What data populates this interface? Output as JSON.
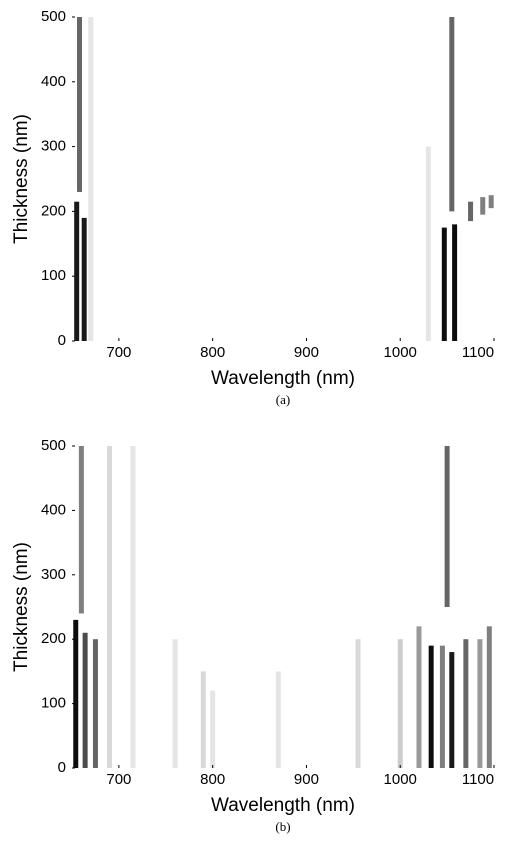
{
  "chart_data": [
    {
      "type": "heatmap",
      "xlabel": "Wavelength (nm)",
      "ylabel": "Thickness (nm)",
      "caption": "(a)",
      "xlim": [
        650,
        1100
      ],
      "ylim": [
        0,
        500
      ],
      "xticks": [
        700,
        800,
        900,
        1000,
        1100
      ],
      "yticks": [
        0,
        100,
        200,
        300,
        400,
        500
      ],
      "x": [
        655,
        658,
        663,
        670,
        1030,
        1047,
        1055,
        1058,
        1075,
        1088,
        1097
      ],
      "y": [
        [
          0,
          215
        ],
        [
          230,
          500
        ],
        [
          0,
          190
        ],
        [
          0,
          500
        ],
        [
          0,
          300
        ],
        [
          0,
          175
        ],
        [
          200,
          500
        ],
        [
          0,
          180
        ],
        [
          185,
          215
        ],
        [
          195,
          222
        ],
        [
          205,
          225
        ]
      ],
      "values": [
        0.9,
        0.6,
        0.9,
        0.1,
        0.1,
        0.95,
        0.6,
        0.95,
        0.6,
        0.5,
        0.5
      ]
    },
    {
      "type": "heatmap",
      "xlabel": "Wavelength (nm)",
      "ylabel": "Thickness (nm)",
      "caption": "(b)",
      "xlim": [
        650,
        1100
      ],
      "ylim": [
        0,
        500
      ],
      "xticks": [
        700,
        800,
        900,
        1000,
        1100
      ],
      "yticks": [
        0,
        100,
        200,
        300,
        400,
        500
      ],
      "x": [
        654,
        660,
        664,
        675,
        690,
        715,
        760,
        790,
        800,
        870,
        955,
        1000,
        1020,
        1033,
        1045,
        1050,
        1055,
        1070,
        1085,
        1095
      ],
      "y": [
        [
          0,
          230
        ],
        [
          240,
          500
        ],
        [
          0,
          210
        ],
        [
          0,
          200
        ],
        [
          0,
          500
        ],
        [
          0,
          500
        ],
        [
          0,
          200
        ],
        [
          0,
          150
        ],
        [
          0,
          120
        ],
        [
          0,
          150
        ],
        [
          0,
          200
        ],
        [
          0,
          200
        ],
        [
          0,
          220
        ],
        [
          0,
          190
        ],
        [
          0,
          190
        ],
        [
          250,
          500
        ],
        [
          0,
          180
        ],
        [
          0,
          200
        ],
        [
          0,
          200
        ],
        [
          0,
          220
        ]
      ],
      "values": [
        0.95,
        0.5,
        0.7,
        0.6,
        0.15,
        0.1,
        0.1,
        0.15,
        0.1,
        0.1,
        0.15,
        0.2,
        0.4,
        0.95,
        0.5,
        0.6,
        0.9,
        0.6,
        0.4,
        0.5
      ]
    }
  ]
}
